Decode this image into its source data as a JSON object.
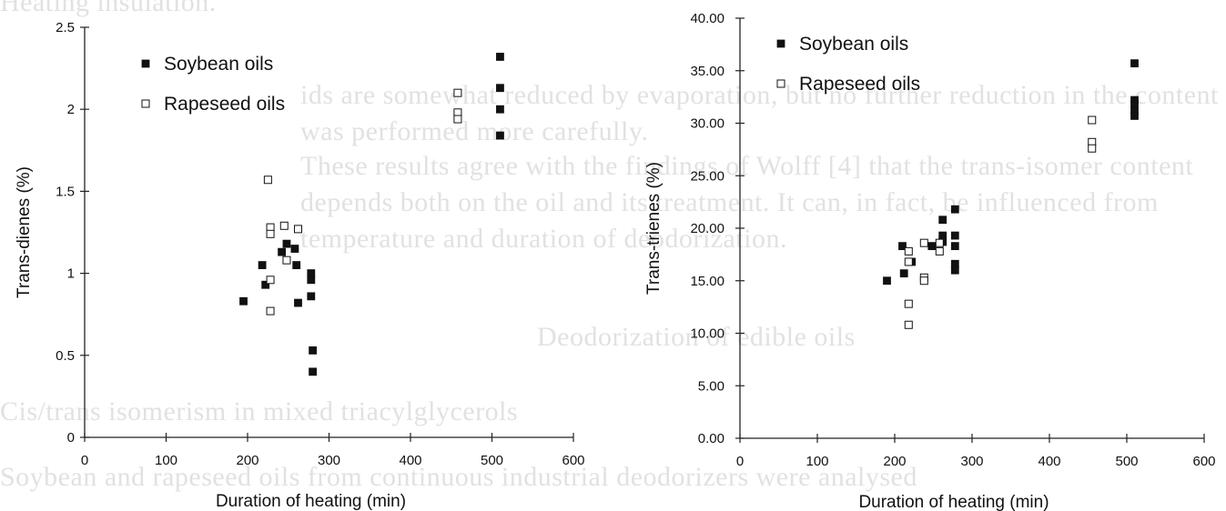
{
  "chart_data": [
    {
      "type": "scatter",
      "xlabel": "Duration of heating (min)",
      "ylabel": "Trans-dienes (%)",
      "xlim": [
        0,
        600
      ],
      "ylim": [
        0,
        2.5
      ],
      "xticks": [
        "0",
        "100",
        "200",
        "300",
        "400",
        "500",
        "600"
      ],
      "yticks": [
        "0",
        "0.5",
        "1",
        "1.5",
        "2",
        "2.5"
      ],
      "legend_position": "top-left",
      "series": [
        {
          "name": "Soybean oils",
          "marker": "filled-square",
          "points": [
            [
              195,
              0.83
            ],
            [
              218,
              1.05
            ],
            [
              222,
              0.93
            ],
            [
              242,
              1.13
            ],
            [
              248,
              1.18
            ],
            [
              258,
              1.15
            ],
            [
              260,
              1.05
            ],
            [
              262,
              0.82
            ],
            [
              278,
              0.96
            ],
            [
              278,
              1.0
            ],
            [
              278,
              0.86
            ],
            [
              280,
              0.53
            ],
            [
              280,
              0.4
            ],
            [
              510,
              2.32
            ],
            [
              510,
              2.13
            ],
            [
              510,
              2.0
            ],
            [
              510,
              1.84
            ]
          ]
        },
        {
          "name": "Rapeseed oils",
          "marker": "open-square",
          "points": [
            [
              225,
              1.57
            ],
            [
              228,
              1.28
            ],
            [
              228,
              1.24
            ],
            [
              228,
              0.96
            ],
            [
              228,
              0.77
            ],
            [
              245,
              1.29
            ],
            [
              248,
              1.08
            ],
            [
              262,
              1.27
            ],
            [
              458,
              2.1
            ],
            [
              458,
              1.98
            ],
            [
              458,
              1.94
            ]
          ]
        }
      ]
    },
    {
      "type": "scatter",
      "xlabel": "Duration of heating (min)",
      "ylabel": "Trans-trienes (%)",
      "xlim": [
        0,
        600
      ],
      "ylim": [
        0,
        40
      ],
      "xticks": [
        "0",
        "100",
        "200",
        "300",
        "400",
        "500",
        "600"
      ],
      "yticks": [
        "0.00",
        "5.00",
        "10.00",
        "15.00",
        "20.00",
        "25.00",
        "30.00",
        "35.00",
        "40.00"
      ],
      "legend_position": "top-left",
      "series": [
        {
          "name": "Soybean oils",
          "marker": "filled-square",
          "points": [
            [
              190,
              15.0
            ],
            [
              210,
              18.3
            ],
            [
              212,
              15.7
            ],
            [
              222,
              16.8
            ],
            [
              248,
              18.3
            ],
            [
              262,
              18.7
            ],
            [
              262,
              19.3
            ],
            [
              262,
              20.8
            ],
            [
              278,
              21.8
            ],
            [
              278,
              19.3
            ],
            [
              278,
              18.3
            ],
            [
              278,
              16.6
            ],
            [
              278,
              16.0
            ],
            [
              510,
              35.7
            ],
            [
              510,
              32.2
            ],
            [
              510,
              31.8
            ],
            [
              510,
              31.2
            ],
            [
              510,
              30.7
            ]
          ]
        },
        {
          "name": "Rapeseed oils",
          "marker": "open-square",
          "points": [
            [
              218,
              17.8
            ],
            [
              218,
              16.8
            ],
            [
              218,
              12.8
            ],
            [
              218,
              10.8
            ],
            [
              238,
              18.6
            ],
            [
              238,
              15.3
            ],
            [
              238,
              15.0
            ],
            [
              258,
              18.6
            ],
            [
              258,
              17.8
            ],
            [
              455,
              30.3
            ],
            [
              455,
              28.2
            ],
            [
              455,
              27.6
            ]
          ]
        }
      ]
    }
  ],
  "background_text": [
    "Heating insulation.",
    "ids are somewhat reduced by evaporation, but no further reduction in the content",
    "was performed more carefully.",
    "These results agree with the findings of Wolff [4] that the trans-isomer content",
    "depends both on the oil and its treatment. It can, in fact, be influenced from",
    "temperature and duration of deodorization.",
    "Deodorization of edible oils",
    "Cis/trans isomerism in mixed triacylglycerols",
    "Soybean and rapeseed oils from continuous industrial deodorizers were analysed"
  ]
}
